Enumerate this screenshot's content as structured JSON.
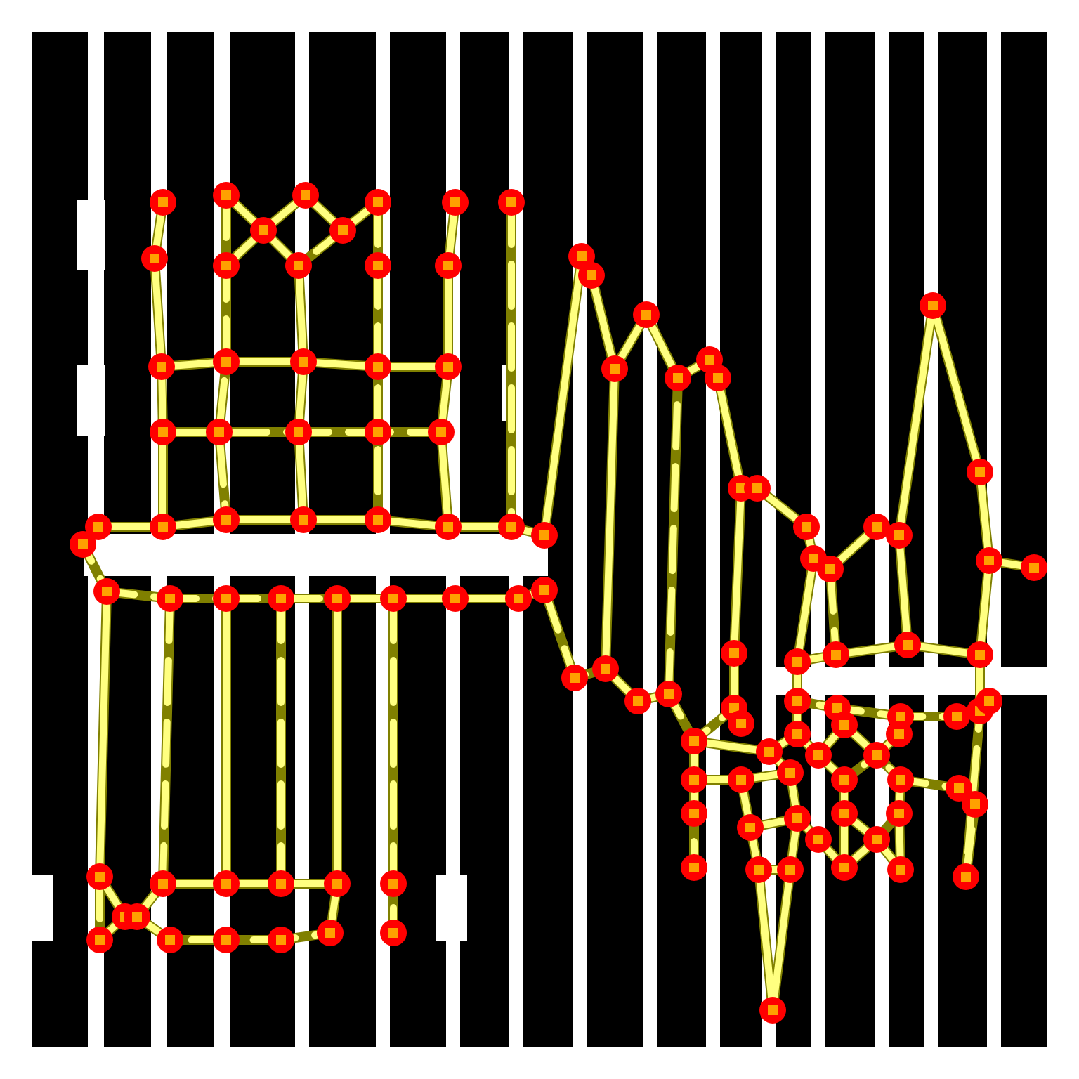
{
  "colors": {
    "background": "#ffffff",
    "ink": "#000000",
    "edge_bright": "#ffff80",
    "edge_dark": "#808000",
    "node_fill": "#ff0000",
    "node_center": "#ffa000"
  }
}
